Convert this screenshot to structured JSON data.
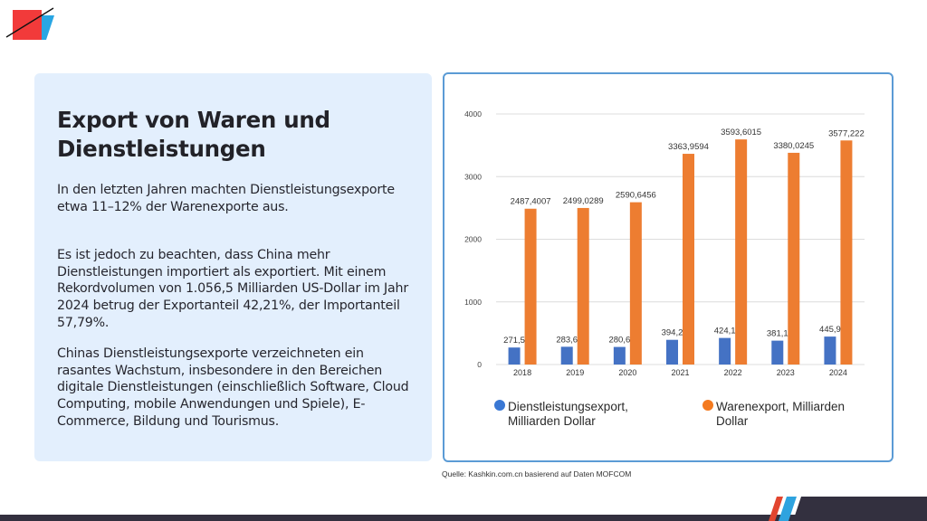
{
  "logo": {
    "name": "brand-logo",
    "colors": {
      "red": "#f23a3a",
      "blue": "#29a6e3",
      "line": "#111111"
    }
  },
  "text_card": {
    "title": "Export von Waren und Dienstleistungen",
    "title_lines": [
      "Export von Waren und",
      "Dienstleistungen"
    ],
    "paragraphs": [
      "In den letzten Jahren machten Dienstleistungsexporte etwa 11–12% der Warenexporte aus.",
      "Es ist jedoch zu beachten, dass China mehr Dienstleistungen importiert als exportiert. Mit einem Rekordvolumen von 1.056,5 Milliarden US-Dollar im Jahr 2024 betrug der Exportanteil 42,21%, der Importanteil 57,79%.",
      "Chinas Dienstleistungsexporte verzeichneten ein rasantes Wachstum, insbesondere in den Bereichen digitale Dienstleistungen (einschließlich Software, Cloud Computing, mobile Anwendungen und Spiele), E-Commerce, Bildung und Tourismus."
    ]
  },
  "source": "Quelle: Kashkin.com.cn basierend auf Daten MOFCOM",
  "colors": {
    "services": "#4472c4",
    "goods": "#ed7d31",
    "legend_services": "#3a78d4",
    "legend_goods": "#f47a1f",
    "card_bg": "#e3effd",
    "chart_border": "#5b9bd5",
    "footer": "#33303f"
  },
  "chart_data": {
    "type": "bar",
    "title": "",
    "xlabel": "",
    "ylabel": "",
    "categories": [
      "2018",
      "2019",
      "2020",
      "2021",
      "2022",
      "2023",
      "2024"
    ],
    "series": [
      {
        "name": "Dienstleistungsexport, Milliarden Dollar",
        "legend_lines": [
          "Dienstleistungsexport,",
          "Milliarden Dollar"
        ],
        "values": [
          271.5,
          283.6,
          280.6,
          394.2,
          424.1,
          381.1,
          445.9
        ],
        "labels": [
          "271,5",
          "283,6",
          "280,6",
          "394,2",
          "424,1",
          "381,1",
          "445,9"
        ]
      },
      {
        "name": "Warenexport, Milliarden Dollar",
        "legend_lines": [
          "Warenexport, Milliarden",
          "Dollar"
        ],
        "values": [
          2487.4007,
          2499.0289,
          2590.6456,
          3363.9594,
          3593.6015,
          3380.0245,
          3577.222
        ],
        "labels": [
          "2487,4007",
          "2499,0289",
          "2590,6456",
          "3363,9594",
          "3593,6015",
          "3380,0245",
          "3577,222"
        ]
      }
    ],
    "ylim": [
      0,
      4000
    ],
    "yticks": [
      0,
      1000,
      2000,
      3000,
      4000
    ],
    "ytick_labels": [
      "0",
      "1000",
      "2000",
      "3000",
      "4000"
    ],
    "grid": true,
    "legend_position": "bottom"
  }
}
